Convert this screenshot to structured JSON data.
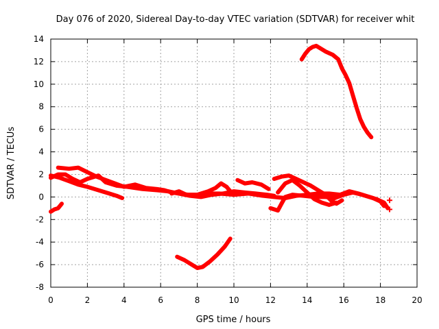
{
  "chart_data": {
    "type": "scatter",
    "title": "Day 076 of 2020, Sidereal Day-to-day VTEC variation (SDTVAR) for receiver whit",
    "xlabel": "GPS time / hours",
    "ylabel": "SDTVAR / TECUs",
    "xlim": [
      0,
      20
    ],
    "ylim": [
      -8,
      14
    ],
    "xticks": [
      0,
      2,
      4,
      6,
      8,
      10,
      12,
      14,
      16,
      18,
      20
    ],
    "yticks": [
      -8,
      -6,
      -4,
      -2,
      0,
      2,
      4,
      6,
      8,
      10,
      12,
      14
    ],
    "grid": true,
    "series_color": "#ff0000",
    "series": [
      {
        "name": "track-1",
        "points": [
          [
            0.0,
            -1.3
          ],
          [
            0.2,
            -1.1
          ],
          [
            0.4,
            -1.0
          ],
          [
            0.6,
            -0.6
          ]
        ]
      },
      {
        "name": "track-2",
        "points": [
          [
            0.0,
            1.9
          ],
          [
            0.5,
            1.7
          ],
          [
            1.0,
            1.4
          ],
          [
            1.5,
            1.1
          ],
          [
            2.0,
            0.9
          ],
          [
            2.6,
            0.6
          ],
          [
            3.2,
            0.3
          ],
          [
            3.6,
            0.1
          ],
          [
            3.9,
            -0.1
          ]
        ]
      },
      {
        "name": "track-3",
        "points": [
          [
            0.0,
            1.7
          ],
          [
            0.4,
            2.0
          ],
          [
            0.8,
            2.0
          ],
          [
            1.2,
            1.6
          ],
          [
            1.6,
            1.3
          ],
          [
            2.0,
            1.6
          ],
          [
            2.6,
            1.9
          ],
          [
            3.0,
            1.3
          ],
          [
            3.6,
            1.0
          ],
          [
            4.2,
            0.9
          ],
          [
            5.0,
            0.7
          ],
          [
            5.8,
            0.6
          ],
          [
            6.4,
            0.5
          ],
          [
            7.0,
            0.3
          ],
          [
            7.5,
            0.2
          ],
          [
            8.0,
            0.2
          ],
          [
            8.6,
            0.3
          ],
          [
            9.2,
            0.3
          ],
          [
            10.0,
            0.2
          ],
          [
            10.8,
            0.3
          ],
          [
            11.6,
            0.1
          ],
          [
            12.2,
            0.0
          ],
          [
            12.8,
            -0.1
          ],
          [
            13.4,
            0.1
          ],
          [
            14.0,
            0.2
          ],
          [
            14.6,
            0.3
          ],
          [
            15.2,
            0.3
          ],
          [
            15.8,
            0.2
          ],
          [
            16.3,
            0.5
          ],
          [
            16.8,
            0.3
          ],
          [
            17.2,
            0.1
          ],
          [
            17.6,
            -0.1
          ],
          [
            18.0,
            -0.4
          ],
          [
            18.2,
            -0.8
          ]
        ]
      },
      {
        "name": "track-4",
        "points": [
          [
            0.4,
            2.6
          ],
          [
            1.0,
            2.5
          ],
          [
            1.5,
            2.6
          ],
          [
            2.0,
            2.2
          ],
          [
            2.5,
            1.8
          ],
          [
            3.0,
            1.5
          ],
          [
            3.5,
            1.2
          ],
          [
            4.0,
            0.9
          ],
          [
            4.6,
            1.1
          ],
          [
            5.2,
            0.8
          ],
          [
            5.8,
            0.7
          ],
          [
            6.2,
            0.6
          ],
          [
            6.6,
            0.4
          ],
          [
            7.0,
            0.3
          ],
          [
            7.6,
            0.1
          ],
          [
            8.2,
            0.0
          ],
          [
            8.8,
            0.2
          ],
          [
            9.4,
            0.3
          ],
          [
            10.0,
            0.5
          ],
          [
            10.6,
            0.4
          ],
          [
            11.2,
            0.3
          ],
          [
            11.8,
            0.2
          ],
          [
            12.2,
            0.1
          ]
        ]
      },
      {
        "name": "track-5",
        "points": [
          [
            6.6,
            0.3
          ],
          [
            7.0,
            0.5
          ],
          [
            7.4,
            0.2
          ],
          [
            8.0,
            0.2
          ],
          [
            8.6,
            0.5
          ],
          [
            9.0,
            0.8
          ],
          [
            9.3,
            1.2
          ],
          [
            9.6,
            0.9
          ],
          [
            9.8,
            0.5
          ]
        ]
      },
      {
        "name": "track-6",
        "points": [
          [
            10.2,
            1.5
          ],
          [
            10.6,
            1.2
          ],
          [
            11.0,
            1.3
          ],
          [
            11.5,
            1.1
          ],
          [
            11.9,
            0.7
          ]
        ]
      },
      {
        "name": "track-7",
        "points": [
          [
            12.0,
            -1.0
          ],
          [
            12.4,
            -1.2
          ],
          [
            12.6,
            -0.6
          ],
          [
            12.8,
            0.0
          ],
          [
            13.2,
            0.2
          ],
          [
            13.8,
            0.1
          ],
          [
            14.4,
            0.0
          ],
          [
            15.0,
            0.0
          ],
          [
            15.5,
            -0.1
          ],
          [
            16.0,
            0.2
          ],
          [
            16.5,
            0.4
          ],
          [
            17.0,
            0.2
          ],
          [
            17.4,
            0.0
          ],
          [
            17.8,
            -0.2
          ],
          [
            18.2,
            -0.5
          ],
          [
            18.4,
            -1.0
          ]
        ]
      },
      {
        "name": "track-8",
        "points": [
          [
            12.2,
            1.6
          ],
          [
            12.6,
            1.8
          ],
          [
            13.0,
            1.9
          ],
          [
            13.4,
            1.6
          ],
          [
            13.8,
            1.3
          ],
          [
            14.2,
            1.0
          ],
          [
            14.6,
            0.6
          ],
          [
            15.0,
            0.2
          ],
          [
            15.3,
            -0.3
          ],
          [
            15.6,
            -0.6
          ],
          [
            15.9,
            -0.3
          ]
        ]
      },
      {
        "name": "track-9",
        "points": [
          [
            12.4,
            0.4
          ],
          [
            12.8,
            1.2
          ],
          [
            13.2,
            1.5
          ],
          [
            13.6,
            1.0
          ],
          [
            14.0,
            0.4
          ],
          [
            14.4,
            -0.2
          ],
          [
            14.8,
            -0.5
          ],
          [
            15.2,
            -0.7
          ],
          [
            15.6,
            -0.5
          ]
        ]
      },
      {
        "name": "track-10",
        "points": [
          [
            6.9,
            -5.3
          ],
          [
            7.3,
            -5.6
          ],
          [
            7.7,
            -6.0
          ],
          [
            8.0,
            -6.3
          ],
          [
            8.3,
            -6.2
          ],
          [
            8.7,
            -5.7
          ],
          [
            9.1,
            -5.1
          ],
          [
            9.5,
            -4.4
          ],
          [
            9.8,
            -3.7
          ]
        ]
      },
      {
        "name": "track-11",
        "points": [
          [
            13.7,
            12.2
          ],
          [
            13.9,
            12.7
          ],
          [
            14.1,
            13.1
          ],
          [
            14.3,
            13.3
          ],
          [
            14.5,
            13.4
          ],
          [
            14.7,
            13.2
          ],
          [
            15.0,
            12.9
          ],
          [
            15.4,
            12.6
          ],
          [
            15.7,
            12.2
          ],
          [
            15.9,
            11.4
          ],
          [
            16.1,
            10.8
          ],
          [
            16.3,
            10.1
          ],
          [
            16.5,
            9.0
          ],
          [
            16.7,
            7.9
          ],
          [
            16.9,
            6.9
          ],
          [
            17.1,
            6.2
          ],
          [
            17.3,
            5.7
          ],
          [
            17.5,
            5.3
          ]
        ]
      }
    ],
    "markers": [
      {
        "name": "marker-1",
        "point": [
          18.5,
          -0.3
        ]
      },
      {
        "name": "marker-2",
        "point": [
          18.5,
          -1.1
        ]
      }
    ]
  }
}
